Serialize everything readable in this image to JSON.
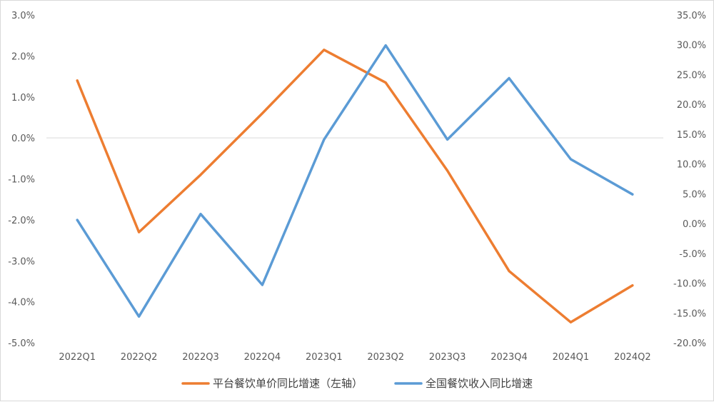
{
  "chart_data": {
    "type": "line",
    "categories": [
      "2022Q1",
      "2022Q2",
      "2022Q3",
      "2022Q4",
      "2023Q1",
      "2023Q2",
      "2023Q3",
      "2023Q4",
      "2024Q1",
      "2024Q2"
    ],
    "series": [
      {
        "name": "平台餐饮单价同比增速（左轴）",
        "axis": "left",
        "color": "#ED7D31",
        "values": [
          1.4,
          -2.3,
          -0.9,
          0.6,
          2.15,
          1.35,
          -0.8,
          -3.25,
          -4.5,
          -3.6
        ]
      },
      {
        "name": "全国餐饮收入同比增速",
        "axis": "right",
        "color": "#5B9BD5",
        "values": [
          0.6,
          -15.6,
          1.6,
          -10.3,
          14.1,
          29.9,
          14.1,
          24.4,
          10.8,
          4.9
        ]
      }
    ],
    "left_axis": {
      "ylim": [
        -5,
        3
      ],
      "ticks": [
        3,
        2,
        1,
        0,
        -1,
        -2,
        -3,
        -4,
        -5
      ],
      "tick_labels": [
        "3.0%",
        "2.0%",
        "1.0%",
        "0.0%",
        "-1.0%",
        "-2.0%",
        "-3.0%",
        "-4.0%",
        "-5.0%"
      ]
    },
    "right_axis": {
      "ylim": [
        -20,
        35
      ],
      "ticks": [
        35,
        30,
        25,
        20,
        15,
        10,
        5,
        0,
        -5,
        -10,
        -15,
        -20
      ],
      "tick_labels": [
        "35.0%",
        "30.0%",
        "25.0%",
        "20.0%",
        "15.0%",
        "10.0%",
        "5.0%",
        "0.0%",
        "-5.0%",
        "-10.0%",
        "-15.0%",
        "-20.0%"
      ]
    },
    "zero_line": true,
    "grid": false,
    "legend_position": "bottom"
  }
}
